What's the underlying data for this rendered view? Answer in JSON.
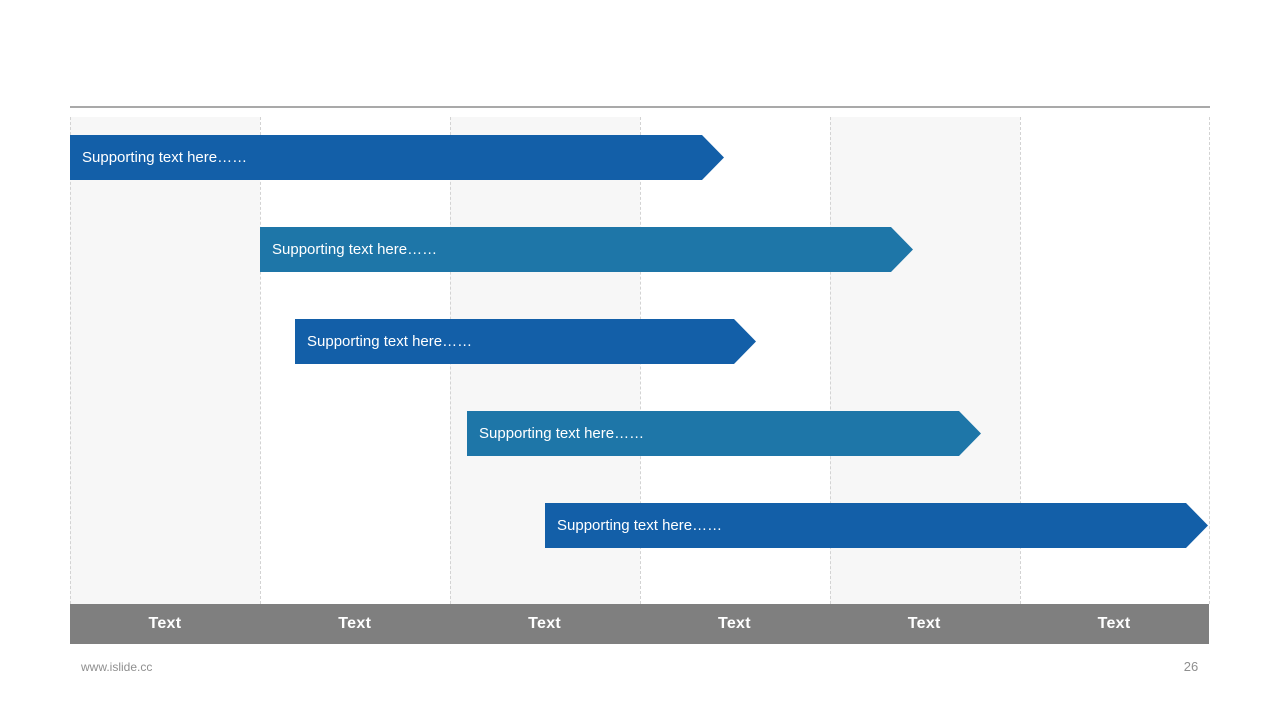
{
  "bars": [
    {
      "label": "Supporting text here……",
      "color": "#135FA8"
    },
    {
      "label": "Supporting text here……",
      "color": "#1E76A8"
    },
    {
      "label": "Supporting text here……",
      "color": "#135FA8"
    },
    {
      "label": "Supporting text here……",
      "color": "#1E76A8"
    },
    {
      "label": "Supporting text here……",
      "color": "#135FA8"
    }
  ],
  "timeline": {
    "bar_color": "#7F7F7F",
    "cells": [
      {
        "label": "Text"
      },
      {
        "label": "Text"
      },
      {
        "label": "Text"
      },
      {
        "label": "Text"
      },
      {
        "label": "Text"
      },
      {
        "label": "Text"
      }
    ]
  },
  "footer": {
    "watermark": "www.islide.cc",
    "page_number": "26"
  },
  "colors": {
    "bar_dark_blue": "#135FA8",
    "bar_teal_blue": "#1E76A8",
    "axis_gray": "#7F7F7F",
    "column_shade": "#F7F7F7",
    "rule_gray": "#A9A9A9"
  }
}
